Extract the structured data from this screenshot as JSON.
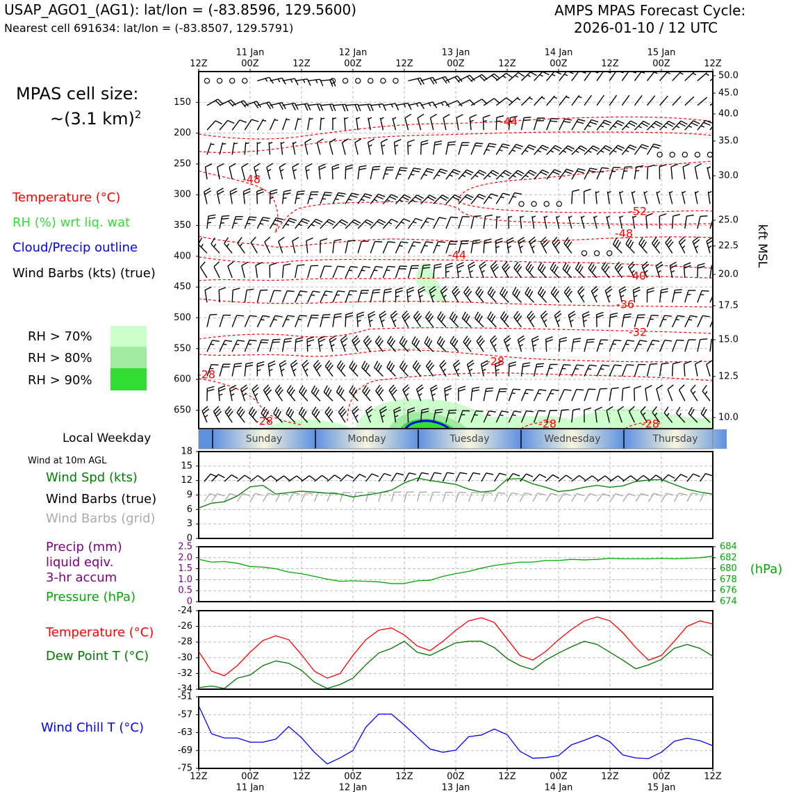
{
  "header": {
    "site_line": "USAP_AGO1_(AG1): lat/lon = (-83.8596, 129.5600)",
    "cell_line": "Nearest cell 691634: lat/lon = (-83.8507, 129.5791)",
    "cycle_title": "AMPS MPAS Forecast Cycle:",
    "cycle_time": "2026-01-10 / 12 UTC"
  },
  "sidebar": {
    "cell_size_label": "MPAS cell size:",
    "cell_size_value": "~(3.1 km)",
    "cell_size_exp": "2",
    "legend_temp": "Temperature (°C)",
    "legend_rh": "RH (%) wrt liq. wat",
    "legend_cloud": "Cloud/Precip outline",
    "legend_barbs": "Wind Barbs (kts) (true)",
    "rh70": "RH > 70%",
    "rh80": "RH > 80%",
    "rh90": "RH > 90%",
    "weekday_label": "Local Weekday",
    "wind10m_title": "Wind at 10m AGL",
    "wind_spd": "Wind Spd (kts)",
    "wind_true": "Wind Barbs (true)",
    "wind_grid": "Wind Barbs (grid)",
    "precip_1": "Precip (mm)",
    "precip_2": "liquid eqiv.",
    "precip_3": "3-hr accum",
    "pressure": "Pressure (hPa)",
    "temp": "Temperature (°C)",
    "dewpoint": "Dew Point T (°C)",
    "windchill": "Wind Chill T (°C)"
  },
  "colors": {
    "temp": "#ff0000",
    "rh": "#33cc33",
    "cloud": "#0000ff",
    "precip": "#800080",
    "pressure": "#00aa00",
    "dew": "#007700",
    "wind_spd": "#008000",
    "grid_barb": "#aaaaaa",
    "rh70": "#ccffcc",
    "rh80": "#a0eba0",
    "rh90": "#33dd33"
  },
  "chart_data": [
    {
      "id": "cross_section",
      "type": "heatmap",
      "x_ticks_top": [
        "12Z",
        "00Z",
        "12Z",
        "00Z",
        "12Z",
        "00Z",
        "12Z",
        "00Z",
        "12Z",
        "00Z",
        "12Z"
      ],
      "date_labels": [
        "11 Jan",
        "12 Jan",
        "13 Jan",
        "14 Jan",
        "15 Jan"
      ],
      "pressure_ticks": [
        "150",
        "200",
        "250",
        "300",
        "350",
        "400",
        "450",
        "500",
        "550",
        "600",
        "650"
      ],
      "kft_ticks": [
        "50.0",
        "45.0",
        "40.0",
        "35.0",
        "30.0",
        "25.0",
        "22.5",
        "20.0",
        "17.5",
        "15.0",
        "12.5",
        "10.0"
      ],
      "kft_axis_label": "kft MSL",
      "temp_contour_labels": [
        "-44",
        "-48",
        "-52",
        "-48",
        "-44",
        "-40",
        "-36",
        "-32",
        "-28",
        "-28",
        "-28",
        "-28",
        "-28"
      ],
      "ylim": [
        680,
        100
      ]
    },
    {
      "id": "weekday_strip",
      "type": "table",
      "days": [
        "Sunday",
        "Monday",
        "Tuesday",
        "Wednesday",
        "Thursday"
      ]
    },
    {
      "id": "wind_speed",
      "type": "line",
      "ylabel": "Wind Spd (kts)",
      "yticks": [
        "18",
        "15",
        "12",
        "9",
        "6",
        "3",
        "0"
      ],
      "ylim": [
        0,
        18
      ],
      "x_hours": [
        0,
        3,
        6,
        9,
        12,
        15,
        18,
        21,
        24,
        27,
        30,
        33,
        36,
        39,
        42,
        45,
        48,
        51,
        54,
        57,
        60,
        63,
        66,
        69,
        72,
        75,
        78,
        81,
        84,
        87,
        90,
        93,
        96,
        99,
        102,
        105,
        108,
        111,
        114,
        117,
        120
      ],
      "values": [
        6.3,
        7.3,
        7.6,
        8.8,
        10.7,
        11.0,
        9.2,
        9.5,
        9.8,
        9.6,
        9.4,
        9.2,
        8.6,
        9.0,
        9.4,
        10.0,
        11.5,
        12.5,
        12.0,
        11.6,
        11.2,
        10.2,
        9.6,
        9.9,
        12.3,
        12.4,
        11.3,
        10.6,
        9.7,
        10.0,
        10.6,
        11.0,
        10.6,
        10.9,
        11.8,
        12.1,
        12.2,
        11.2,
        10.2,
        9.6,
        9.2
      ]
    },
    {
      "id": "precip_pressure",
      "type": "line",
      "left_ticks": [
        "2.5",
        "2.0",
        "1.5",
        "1.0",
        "0.5",
        "0"
      ],
      "right_ticks": [
        "684",
        "682",
        "680",
        "678",
        "676",
        "674"
      ],
      "right_unit": "(hPa)",
      "ylim_precip": [
        0,
        2.5
      ],
      "ylim_pressure": [
        674,
        684
      ],
      "values_pressure": [
        681.7,
        681.2,
        681.3,
        681.0,
        680.4,
        680.3,
        680.0,
        679.4,
        679.1,
        678.6,
        678.1,
        677.7,
        677.8,
        677.7,
        677.6,
        677.3,
        677.3,
        677.8,
        677.9,
        678.6,
        679.1,
        679.5,
        680.1,
        680.6,
        680.9,
        681.2,
        681.2,
        681.5,
        681.5,
        681.7,
        681.6,
        681.7,
        681.9,
        681.8,
        681.8,
        681.8,
        681.9,
        681.8,
        681.9,
        682.0,
        682.3
      ]
    },
    {
      "id": "temperature",
      "type": "line",
      "yticks": [
        "-24",
        "-26",
        "-28",
        "-30",
        "-32",
        "-34"
      ],
      "ylim": [
        -34,
        -24
      ],
      "series": [
        {
          "name": "Temperature",
          "values": [
            -29.2,
            -31.7,
            -32.3,
            -31.0,
            -29.3,
            -27.8,
            -27.2,
            -27.7,
            -29.6,
            -31.7,
            -32.6,
            -32.0,
            -29.7,
            -27.7,
            -26.5,
            -26.2,
            -27.1,
            -28.5,
            -29.1,
            -27.9,
            -26.5,
            -25.3,
            -24.9,
            -25.5,
            -27.6,
            -29.7,
            -30.3,
            -29.2,
            -27.7,
            -26.4,
            -25.3,
            -24.8,
            -25.3,
            -26.8,
            -28.7,
            -30.3,
            -29.7,
            -27.9,
            -26.0,
            -25.3,
            -25.7
          ]
        },
        {
          "name": "Dew Point",
          "values": [
            -33.8,
            -33.6,
            -33.9,
            -32.6,
            -32.2,
            -31.0,
            -30.4,
            -30.7,
            -31.6,
            -33.1,
            -33.9,
            -33.4,
            -32.6,
            -30.9,
            -29.4,
            -28.8,
            -27.9,
            -29.3,
            -29.7,
            -28.9,
            -28.1,
            -27.9,
            -27.9,
            -28.7,
            -30.1,
            -31.0,
            -31.5,
            -30.3,
            -29.4,
            -28.6,
            -27.9,
            -28.3,
            -29.3,
            -30.3,
            -31.4,
            -30.9,
            -30.2,
            -28.8,
            -28.3,
            -28.8,
            -29.8
          ]
        }
      ]
    },
    {
      "id": "wind_chill",
      "type": "line",
      "yticks": [
        "-51",
        "-57",
        "-63",
        "-69",
        "-75"
      ],
      "ylim": [
        -75,
        -51
      ],
      "values": [
        -54.0,
        -63.4,
        -64.8,
        -64.8,
        -66.2,
        -66.2,
        -65.2,
        -61.0,
        -64.7,
        -69.6,
        -73.5,
        -71.5,
        -69.0,
        -61.2,
        -56.8,
        -56.8,
        -60.5,
        -64.5,
        -68.5,
        -69.6,
        -68.9,
        -64.4,
        -63.8,
        -61.8,
        -63.7,
        -69.3,
        -71.6,
        -71.4,
        -70.7,
        -67.1,
        -65.6,
        -63.9,
        -66.1,
        -70.5,
        -71.5,
        -71.7,
        -69.6,
        -65.9,
        -64.9,
        -65.7,
        -67.4
      ]
    }
  ],
  "bottom_axis": {
    "ticks": [
      "12Z",
      "00Z",
      "12Z",
      "00Z",
      "12Z",
      "00Z",
      "12Z",
      "00Z",
      "12Z",
      "00Z",
      "12Z"
    ],
    "dates": [
      "11 Jan",
      "12 Jan",
      "13 Jan",
      "14 Jan",
      "15 Jan"
    ]
  }
}
